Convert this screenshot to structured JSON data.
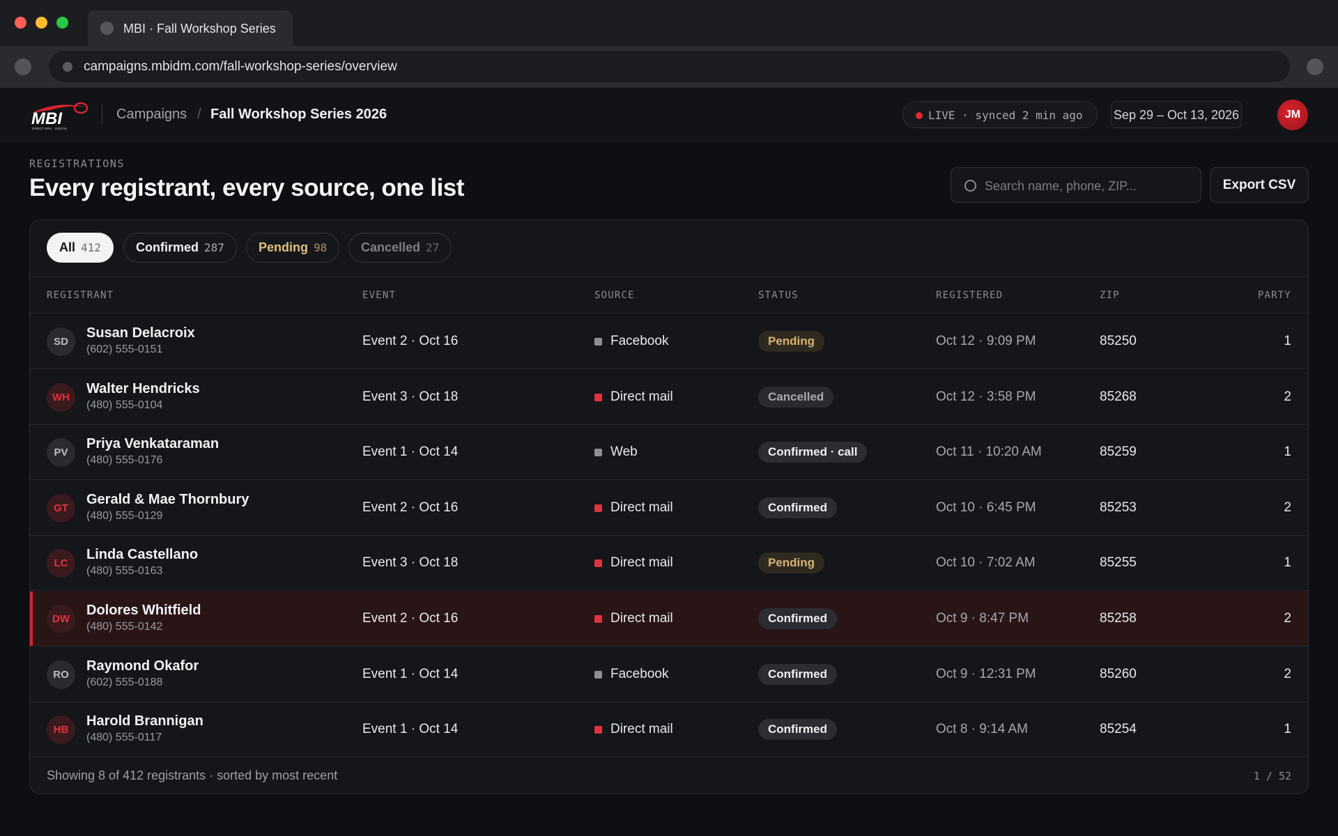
{
  "browser": {
    "tab_title": "MBI · Fall Workshop Series",
    "url": "campaigns.mbidm.com/fall-workshop-series/overview"
  },
  "header": {
    "logo_text": "MBI",
    "logo_subtext": "DIRECT MAIL · DIGITAL",
    "breadcrumb_parent": "Campaigns",
    "breadcrumb_sep": "/",
    "breadcrumb_current": "Fall Workshop Series 2026",
    "live_status": "LIVE · synced 2 min ago",
    "date_range": "Sep 29 – Oct 13, 2026",
    "user_initials": "JM"
  },
  "page": {
    "eyebrow": "REGISTRATIONS",
    "title": "Every registrant, every source, one list",
    "search_placeholder": "Search name, phone, ZIP...",
    "export_label": "Export CSV"
  },
  "filters": [
    {
      "label": "All",
      "count": "412"
    },
    {
      "label": "Confirmed",
      "count": "287"
    },
    {
      "label": "Pending",
      "count": "98"
    },
    {
      "label": "Cancelled",
      "count": "27"
    }
  ],
  "columns": {
    "registrant": "REGISTRANT",
    "event": "EVENT",
    "source": "SOURCE",
    "status": "STATUS",
    "registered": "REGISTERED",
    "zip": "ZIP",
    "party": "PARTY"
  },
  "colors": {
    "accent": "#d42530",
    "source_direct_mail": "#e0333d",
    "source_other": "#8e8f95"
  },
  "rows": [
    {
      "initials": "SD",
      "name": "Susan Delacroix",
      "phone": "(602) 555-0151",
      "event": "Event 2 · Oct 16",
      "source": "Facebook",
      "status": "Pending",
      "registered": "Oct 12 · 9:09 PM",
      "zip": "85250",
      "party": "1"
    },
    {
      "initials": "WH",
      "name": "Walter Hendricks",
      "phone": "(480) 555-0104",
      "event": "Event 3 · Oct 18",
      "source": "Direct mail",
      "status": "Cancelled",
      "registered": "Oct 12 · 3:58 PM",
      "zip": "85268",
      "party": "2"
    },
    {
      "initials": "PV",
      "name": "Priya Venkataraman",
      "phone": "(480) 555-0176",
      "event": "Event 1 · Oct 14",
      "source": "Web",
      "status": "Confirmed · call",
      "registered": "Oct 11 · 10:20 AM",
      "zip": "85259",
      "party": "1"
    },
    {
      "initials": "GT",
      "name": "Gerald & Mae Thornbury",
      "phone": "(480) 555-0129",
      "event": "Event 2 · Oct 16",
      "source": "Direct mail",
      "status": "Confirmed",
      "registered": "Oct 10 · 6:45 PM",
      "zip": "85253",
      "party": "2"
    },
    {
      "initials": "LC",
      "name": "Linda Castellano",
      "phone": "(480) 555-0163",
      "event": "Event 3 · Oct 18",
      "source": "Direct mail",
      "status": "Pending",
      "registered": "Oct 10 · 7:02 AM",
      "zip": "85255",
      "party": "1"
    },
    {
      "initials": "DW",
      "name": "Dolores Whitfield",
      "phone": "(480) 555-0142",
      "event": "Event 2 · Oct 16",
      "source": "Direct mail",
      "status": "Confirmed",
      "registered": "Oct 9 · 8:47 PM",
      "zip": "85258",
      "party": "2"
    },
    {
      "initials": "RO",
      "name": "Raymond Okafor",
      "phone": "(602) 555-0188",
      "event": "Event 1 · Oct 14",
      "source": "Facebook",
      "status": "Confirmed",
      "registered": "Oct 9 · 12:31 PM",
      "zip": "85260",
      "party": "2"
    },
    {
      "initials": "HB",
      "name": "Harold Brannigan",
      "phone": "(480) 555-0117",
      "event": "Event 1 · Oct 14",
      "source": "Direct mail",
      "status": "Confirmed",
      "registered": "Oct 8 · 9:14 AM",
      "zip": "85254",
      "party": "1"
    }
  ],
  "footer": {
    "summary": "Showing 8 of 412 registrants · sorted by most recent",
    "pager": "1 / 52"
  }
}
